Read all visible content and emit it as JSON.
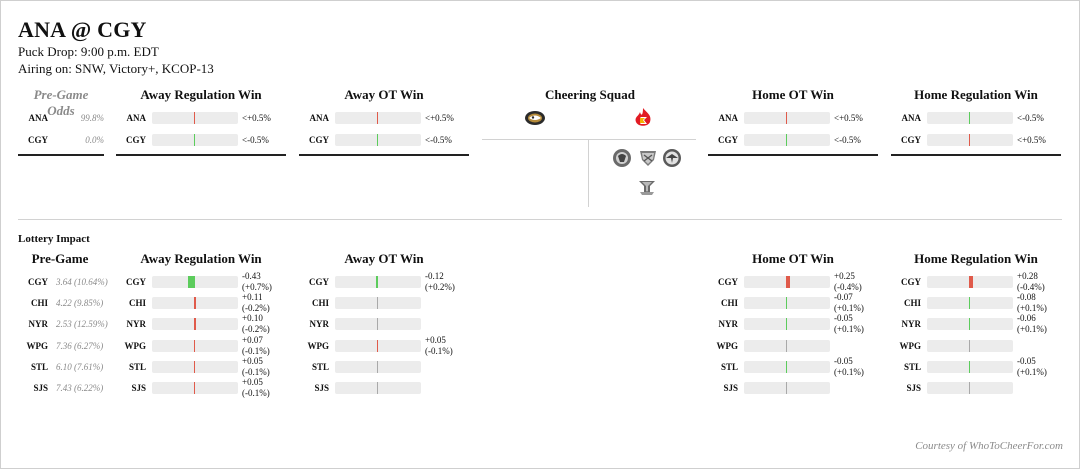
{
  "header": {
    "title": "ANA @ CGY",
    "puck_drop": "Puck Drop: 9:00 p.m. EDT",
    "airing": "Airing on: SNW, Victory+, KCOP-13"
  },
  "pregame_odds": {
    "title": "Pre-Game Odds",
    "rows": [
      {
        "team": "ANA",
        "value": "99.8%"
      },
      {
        "team": "CGY",
        "value": "0.0%"
      }
    ]
  },
  "odds_panels": [
    {
      "title": "Away Regulation Win",
      "rows": [
        {
          "team": "ANA",
          "label": "<+0.5%",
          "delta": 0.3
        },
        {
          "team": "CGY",
          "label": "<-0.5%",
          "delta": -0.1
        }
      ]
    },
    {
      "title": "Away OT Win",
      "rows": [
        {
          "team": "ANA",
          "label": "<+0.5%",
          "delta": 0.3
        },
        {
          "team": "CGY",
          "label": "<-0.5%",
          "delta": -0.1
        }
      ]
    },
    {
      "title": "Home OT Win",
      "rows": [
        {
          "team": "ANA",
          "label": "<+0.5%",
          "delta": 0.3
        },
        {
          "team": "CGY",
          "label": "<-0.5%",
          "delta": -0.1
        }
      ]
    },
    {
      "title": "Home Regulation Win",
      "rows": [
        {
          "team": "ANA",
          "label": "<-0.5%",
          "delta": -0.3
        },
        {
          "team": "CGY",
          "label": "<+0.5%",
          "delta": 0.1
        }
      ]
    }
  ],
  "cheering_squad": {
    "title": "Cheering Squad",
    "away_logo": "ducks-logo",
    "home_logo": "flames-logo",
    "secondary_logos": [
      "blackhawks-logo",
      "rangers-logo",
      "jets-logo",
      "blues-logo"
    ]
  },
  "lottery": {
    "title": "Lottery Impact",
    "pregame_title": "Pre-Game",
    "pregame_rows": [
      {
        "team": "CGY",
        "value": "3.64 (10.64%)"
      },
      {
        "team": "CHI",
        "value": "4.22 (9.85%)"
      },
      {
        "team": "NYR",
        "value": "2.53 (12.59%)"
      },
      {
        "team": "WPG",
        "value": "7.36 (6.27%)"
      },
      {
        "team": "STL",
        "value": "6.10 (7.61%)"
      },
      {
        "team": "SJS",
        "value": "7.43 (6.22%)"
      }
    ],
    "panels": [
      {
        "title": "Away Regulation Win",
        "rows": [
          {
            "team": "CGY",
            "line1": "-0.43",
            "line2": "(+0.7%)",
            "delta": -0.43
          },
          {
            "team": "CHI",
            "line1": "+0.11",
            "line2": "(-0.2%)",
            "delta": 0.11
          },
          {
            "team": "NYR",
            "line1": "+0.10",
            "line2": "(-0.2%)",
            "delta": 0.1
          },
          {
            "team": "WPG",
            "line1": "+0.07",
            "line2": "(-0.1%)",
            "delta": 0.07
          },
          {
            "team": "STL",
            "line1": "+0.05",
            "line2": "(-0.1%)",
            "delta": 0.05
          },
          {
            "team": "SJS",
            "line1": "+0.05",
            "line2": "(-0.1%)",
            "delta": 0.05
          }
        ]
      },
      {
        "title": "Away OT Win",
        "rows": [
          {
            "team": "CGY",
            "line1": "-0.12",
            "line2": "(+0.2%)",
            "delta": -0.12
          },
          {
            "team": "CHI",
            "line1": "",
            "line2": "",
            "delta": 0.0
          },
          {
            "team": "NYR",
            "line1": "",
            "line2": "",
            "delta": 0.0
          },
          {
            "team": "WPG",
            "line1": "+0.05",
            "line2": "(-0.1%)",
            "delta": 0.05
          },
          {
            "team": "STL",
            "line1": "",
            "line2": "",
            "delta": 0.0
          },
          {
            "team": "SJS",
            "line1": "",
            "line2": "",
            "delta": 0.0
          }
        ]
      },
      {
        "title": "Home OT Win",
        "rows": [
          {
            "team": "CGY",
            "line1": "+0.25",
            "line2": "(-0.4%)",
            "delta": 0.25
          },
          {
            "team": "CHI",
            "line1": "-0.07",
            "line2": "(+0.1%)",
            "delta": -0.07
          },
          {
            "team": "NYR",
            "line1": "-0.05",
            "line2": "(+0.1%)",
            "delta": -0.05
          },
          {
            "team": "WPG",
            "line1": "",
            "line2": "",
            "delta": 0.0
          },
          {
            "team": "STL",
            "line1": "-0.05",
            "line2": "(+0.1%)",
            "delta": -0.05
          },
          {
            "team": "SJS",
            "line1": "",
            "line2": "",
            "delta": 0.0
          }
        ]
      },
      {
        "title": "Home Regulation Win",
        "rows": [
          {
            "team": "CGY",
            "line1": "+0.28",
            "line2": "(-0.4%)",
            "delta": 0.28
          },
          {
            "team": "CHI",
            "line1": "-0.08",
            "line2": "(+0.1%)",
            "delta": -0.08
          },
          {
            "team": "NYR",
            "line1": "-0.06",
            "line2": "(+0.1%)",
            "delta": -0.06
          },
          {
            "team": "WPG",
            "line1": "",
            "line2": "",
            "delta": 0.0
          },
          {
            "team": "STL",
            "line1": "-0.05",
            "line2": "(+0.1%)",
            "delta": -0.05
          },
          {
            "team": "SJS",
            "line1": "",
            "line2": "",
            "delta": 0.0
          }
        ]
      }
    ]
  },
  "footer": {
    "courtesy": "Courtesy of WhoToCheerFor.com"
  },
  "colors": {
    "good": "#5ccc5c",
    "bad": "#e05a4a",
    "track": "#ececec",
    "muted": "#8a8a8a"
  }
}
